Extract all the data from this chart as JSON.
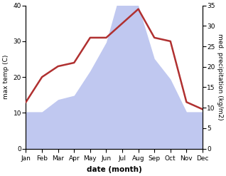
{
  "months": [
    "Jan",
    "Feb",
    "Mar",
    "Apr",
    "May",
    "Jun",
    "Jul",
    "Aug",
    "Sep",
    "Oct",
    "Nov",
    "Dec"
  ],
  "temperature": [
    13,
    20,
    23,
    24,
    31,
    31,
    35,
    39,
    31,
    30,
    13,
    11
  ],
  "precipitation": [
    9,
    9,
    12,
    13,
    19,
    26,
    40,
    35,
    22,
    17,
    9,
    9
  ],
  "temp_color": "#b03030",
  "precip_color": "#c0c8f0",
  "left_label": "max temp (C)",
  "right_label": "med. precipitation (kg/m2)",
  "xlabel": "date (month)",
  "left_ylim": [
    0,
    40
  ],
  "right_ylim": [
    0,
    35
  ],
  "left_yticks": [
    0,
    10,
    20,
    30,
    40
  ],
  "right_yticks": [
    0,
    5,
    10,
    15,
    20,
    25,
    30,
    35
  ],
  "background_color": "#ffffff",
  "line_width": 1.8
}
